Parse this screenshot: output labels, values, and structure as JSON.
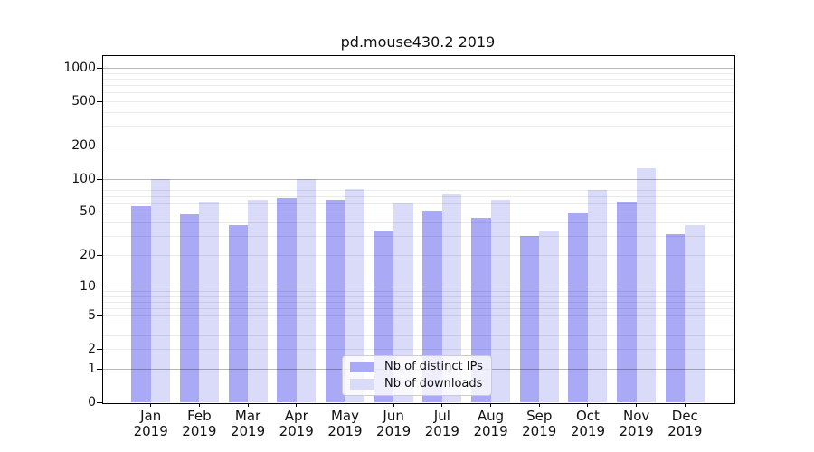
{
  "title": "pd.mouse430.2 2019",
  "chart_data": {
    "type": "bar",
    "title": "pd.mouse430.2 2019",
    "categories": [
      "Jan 2019",
      "Feb 2019",
      "Mar 2019",
      "Apr 2019",
      "May 2019",
      "Jun 2019",
      "Jul 2019",
      "Aug 2019",
      "Sep 2019",
      "Oct 2019",
      "Nov 2019",
      "Dec 2019"
    ],
    "series": [
      {
        "name": "Nb of distinct IPs",
        "color": "#a9a9f5",
        "values": [
          56,
          48,
          38,
          67,
          65,
          34,
          51,
          44,
          30,
          49,
          62,
          31
        ]
      },
      {
        "name": "Nb of downloads",
        "color": "#dadaf9",
        "values": [
          100,
          61,
          64,
          100,
          81,
          60,
          72,
          65,
          33,
          80,
          125,
          38
        ]
      }
    ],
    "xlabel": "",
    "ylabel": "",
    "yscale": "log1p",
    "ylim": [
      0,
      1300
    ],
    "yticks": [
      0,
      1,
      2,
      5,
      10,
      20,
      50,
      100,
      200,
      500,
      1000
    ],
    "grid": "major and minor horizontal gridlines",
    "legend_position": "lower center"
  },
  "colors": {
    "background": "#ffffff",
    "spine": "#000000",
    "grid_major": "rgba(0,0,0,0.28)",
    "grid_minor": "rgba(0,0,0,0.08)",
    "text": "#111111",
    "legend_border": "#cccccc",
    "legend_background": "rgba(255,255,255,0.8)"
  }
}
